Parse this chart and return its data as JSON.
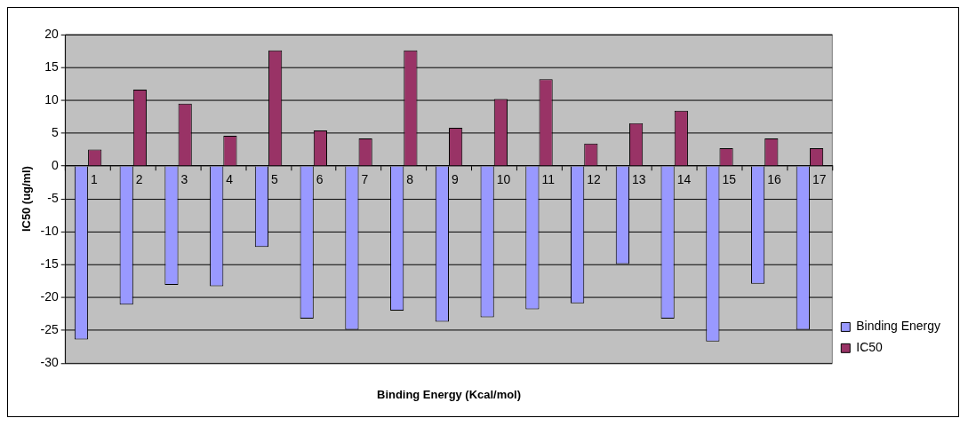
{
  "chart_data": {
    "type": "bar",
    "xlabel": "Binding Energy (Kcal/mol)",
    "ylabel": "IC50 (ug/ml)",
    "categories": [
      "1",
      "2",
      "3",
      "4",
      "5",
      "6",
      "7",
      "8",
      "9",
      "10",
      "11",
      "12",
      "13",
      "14",
      "15",
      "16",
      "17"
    ],
    "series": [
      {
        "name": "Binding Energy",
        "color": "#9999ff",
        "values": [
          -26.4,
          -21.1,
          -18.1,
          -18.3,
          -12.3,
          -23.2,
          -24.9,
          -22.0,
          -23.7,
          -23.0,
          -21.8,
          -20.9,
          -14.9,
          -23.2,
          -26.7,
          -17.9,
          -24.9
        ]
      },
      {
        "name": "IC50",
        "color": "#993366",
        "values": [
          2.5,
          11.6,
          9.5,
          4.6,
          17.6,
          5.4,
          4.2,
          17.6,
          5.8,
          10.2,
          13.2,
          3.4,
          6.5,
          8.4,
          2.7,
          4.2,
          2.7
        ]
      }
    ],
    "ylim": [
      -30,
      20
    ],
    "yticks": [
      -30,
      -25,
      -20,
      -15,
      -10,
      -5,
      0,
      5,
      10,
      15,
      20
    ],
    "grid": "y",
    "legend": "bottom right"
  }
}
